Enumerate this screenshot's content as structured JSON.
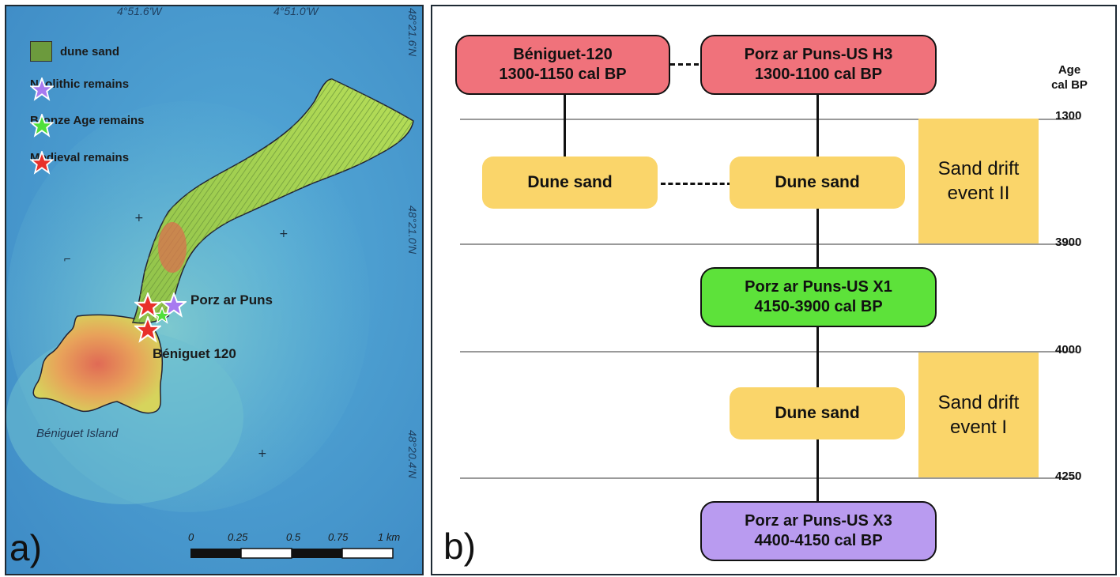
{
  "panel_a": {
    "letter": "a)",
    "coords": {
      "top_left": "4°51.6'W",
      "top_right": "4°51.0'W",
      "right_top": "48°21.6'N",
      "right_mid": "48°21.0'N",
      "right_bottom": "48°20.4'N"
    },
    "legend": [
      {
        "label": "dune sand",
        "icon": "swatch-icon",
        "color": "#6c9a3d"
      },
      {
        "label": "Neolithic remains",
        "icon": "star-icon",
        "color": "#a77af0"
      },
      {
        "label": "Bronze Age remains",
        "icon": "star-icon",
        "color": "#4fe03a"
      },
      {
        "label": "Medieval remains",
        "icon": "star-icon",
        "color": "#e8302a"
      }
    ],
    "labels": {
      "porz": "Porz ar Puns",
      "beniguet120": "Béniguet 120",
      "island": "Béniguet Island"
    },
    "scale": [
      "0",
      "0.25",
      "0.5",
      "0.75",
      "1 km"
    ]
  },
  "panel_b": {
    "letter": "b)",
    "axis_title": "Age\ncal BP",
    "ticks": [
      "1300",
      "3900",
      "4000",
      "4250"
    ],
    "sites": {
      "beniguet": {
        "name": "Béniguet-120",
        "date": "1300-1150 cal BP",
        "color": "#f0727b"
      },
      "h3": {
        "name": "Porz ar Puns-US H3",
        "date": "1300-1100 cal BP",
        "color": "#f0727b"
      },
      "x1": {
        "name": "Porz ar Puns-US X1",
        "date": "4150-3900 cal BP",
        "color": "#5de23a"
      },
      "x3": {
        "name": "Porz ar Puns-US X3",
        "date": "4400-4150 cal BP",
        "color": "#b99bf0"
      }
    },
    "dune_sand": "Dune sand",
    "events": {
      "ii": {
        "line1": "Sand drift",
        "line2": "event II"
      },
      "i": {
        "line1": "Sand drift",
        "line2": "event I"
      }
    }
  }
}
